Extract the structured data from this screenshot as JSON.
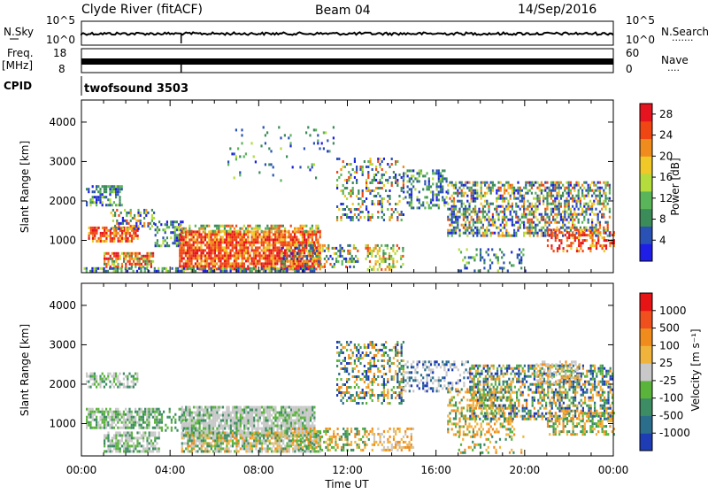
{
  "header": {
    "station": "Clyde River (fitACF)",
    "beam": "Beam 04",
    "date": "14/Sep/2016"
  },
  "nsky_panel": {
    "label": "N.Sky",
    "left_ticks": [
      "10^5",
      "10^0"
    ],
    "right_ticks": [
      "10^5",
      "10^0"
    ],
    "right_label": "N.Search",
    "right_dots": "·······"
  },
  "freq_panel": {
    "label_top": "Freq.",
    "label_unit": "[MHz]",
    "left_ticks": [
      "18",
      "8"
    ],
    "right_ticks": [
      "60",
      "0"
    ],
    "right_label": "Nave",
    "right_dots": "····"
  },
  "cpid": {
    "label": "CPID",
    "value": "twofsound 3503"
  },
  "chart_data": [
    {
      "type": "heatmap",
      "title": "",
      "ylabel": "Slant Range [km]",
      "xlabel": "",
      "x_range_hours": [
        0,
        24
      ],
      "ylim_km": [
        180,
        4560
      ],
      "y_ticks": [
        "1000",
        "2000",
        "3000",
        "4000"
      ],
      "colorbar": {
        "label": "Power [dB]",
        "ticks": [
          "4",
          "8",
          "12",
          "16",
          "20",
          "24",
          "28"
        ],
        "range": [
          0,
          30
        ],
        "colors": [
          "#1e1ee6",
          "#2a52b4",
          "#3c8c5a",
          "#5ab45a",
          "#b4dc3c",
          "#f0c828",
          "#f08c1e",
          "#f04614",
          "#e6141e"
        ]
      }
    },
    {
      "type": "heatmap",
      "title": "",
      "ylabel": "Slant Range [km]",
      "xlabel": "Time UT",
      "x_range_hours": [
        0,
        24
      ],
      "ylim_km": [
        180,
        4560
      ],
      "y_ticks": [
        "1000",
        "2000",
        "3000",
        "4000"
      ],
      "x_ticks": [
        "00:00",
        "04:00",
        "08:00",
        "12:00",
        "16:00",
        "20:00",
        "00:00"
      ],
      "colorbar": {
        "label": "Velocity [m s⁻¹]",
        "ticks": [
          "1000",
          "500",
          "100",
          "25",
          "-25",
          "-100",
          "-500",
          "-1000"
        ],
        "colors": [
          "#1e3cb4",
          "#2a6e8c",
          "#3c8c64",
          "#5ab43c",
          "#c8c8c8",
          "#f0b43c",
          "#f08c1e",
          "#f0501e",
          "#e61414"
        ]
      }
    }
  ]
}
